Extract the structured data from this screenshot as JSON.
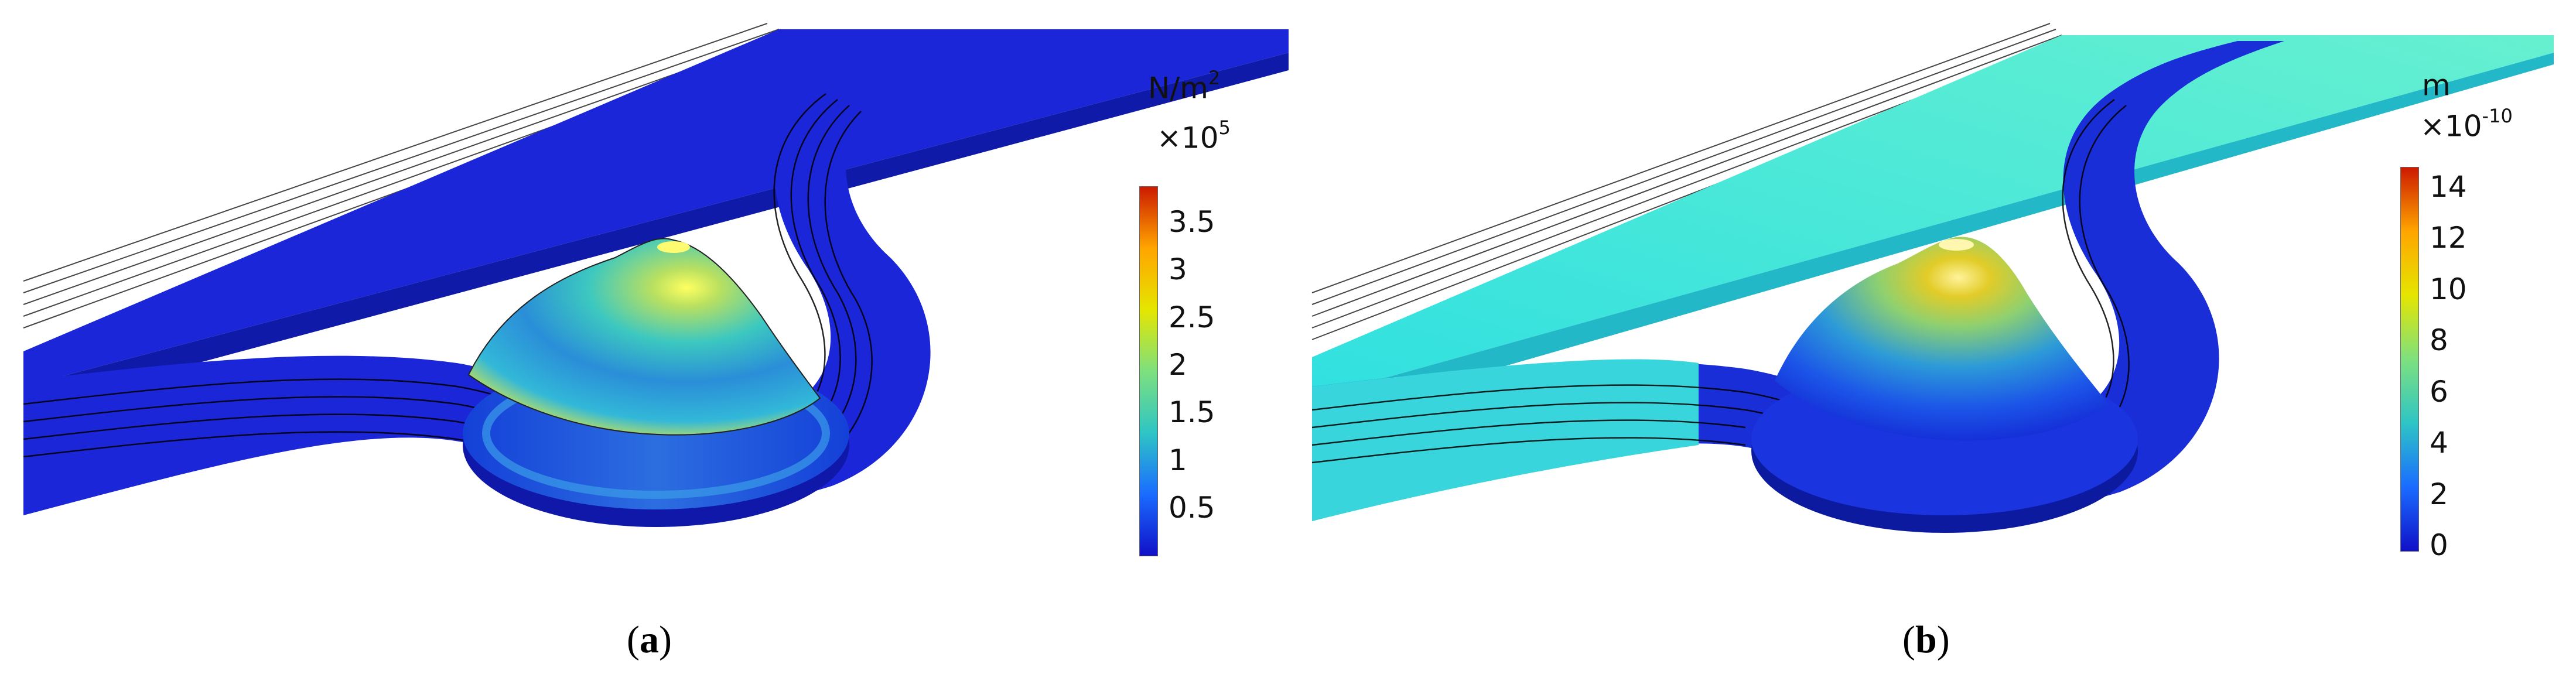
{
  "panels": [
    {
      "label": "a",
      "colorbar": {
        "unit": "N/m",
        "unit_sup": "2",
        "scale_base": "×10",
        "scale_exp": "5",
        "ticks": [
          "3.5",
          "3",
          "2.5",
          "2",
          "1.5",
          "1",
          "0.5"
        ],
        "colors": [
          "#cc1a00",
          "#ffa500",
          "#e5e600",
          "#7ee07e",
          "#2ec5c5",
          "#1a6cff",
          "#1010c8"
        ]
      }
    },
    {
      "label": "b",
      "colorbar": {
        "unit": "m",
        "unit_sup": "",
        "scale_base": "×10",
        "scale_exp": "-10",
        "ticks": [
          "14",
          "12",
          "10",
          "8",
          "6",
          "4",
          "2",
          "0"
        ],
        "colors": [
          "#cc1a00",
          "#ffa500",
          "#e5e600",
          "#7ee07e",
          "#2ec5c5",
          "#1a6cff",
          "#1010c8"
        ]
      }
    }
  ]
}
